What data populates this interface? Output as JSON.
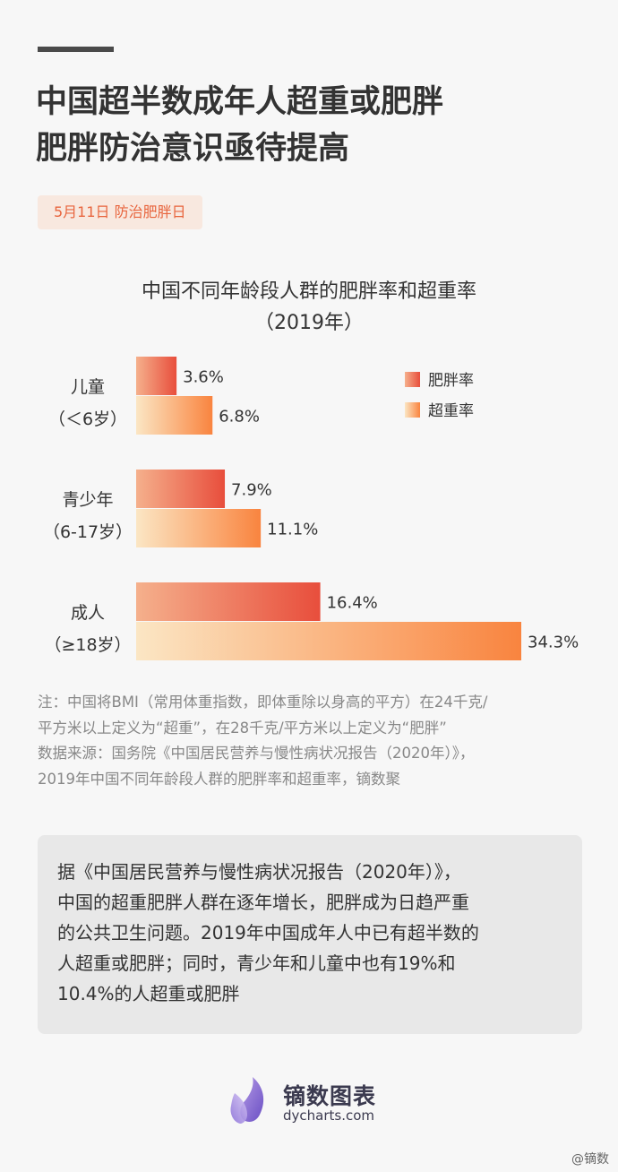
{
  "headline": {
    "line1": "中国超半数成年人超重或肥胖",
    "line2": "肥胖防治意识亟待提高"
  },
  "date_tag": "5月11日 防治肥胖日",
  "chart_data": {
    "type": "bar",
    "orientation": "horizontal",
    "title": "中国不同年龄段人群的肥胖率和超重率",
    "subtitle": "（2019年）",
    "categories": [
      {
        "line1": "儿童",
        "line2": "（＜6岁）"
      },
      {
        "line1": "青少年",
        "line2": "（6-17岁）"
      },
      {
        "line1": "成人",
        "line2": "（≥18岁）"
      }
    ],
    "series": [
      {
        "name": "肥胖率",
        "values": [
          3.6,
          7.9,
          16.4
        ],
        "labels": [
          "3.6%",
          "7.9%",
          "16.4%"
        ],
        "color_from": "#f5b08c",
        "color_to": "#e84e3c"
      },
      {
        "name": "超重率",
        "values": [
          6.8,
          11.1,
          34.3
        ],
        "labels": [
          "6.8%",
          "11.1%",
          "34.3%"
        ],
        "color_from": "#fbe6c4",
        "color_to": "#f9843f"
      }
    ],
    "xlim": [
      0,
      34.3
    ],
    "grid": false,
    "legend_position": "top-right"
  },
  "note": {
    "line1": "注：中国将BMI（常用体重指数，即体重除以身高的平方）在24千克/",
    "line2": "平方米以上定义为“超重”，在28千克/平方米以上定义为“肥胖”",
    "line3": "数据来源：国务院《中国居民营养与慢性病状况报告（2020年）》，",
    "line4": "2019年中国不同年龄段人群的肥胖率和超重率，镝数聚"
  },
  "summary": {
    "line1": "据《中国居民营养与慢性病状况报告（2020年）》，",
    "line2": "中国的超重肥胖人群在逐年增长，肥胖成为日趋严重",
    "line3": "的公共卫生问题。2019年中国成年人中已有超半数的",
    "line4": "人超重或肥胖；同时，青少年和儿童中也有19%和",
    "line5": "10.4%的人超重或肥胖"
  },
  "brand": {
    "name_cn": "镝数图表",
    "url": "dycharts.com"
  },
  "weibo_mark": "@镝数"
}
